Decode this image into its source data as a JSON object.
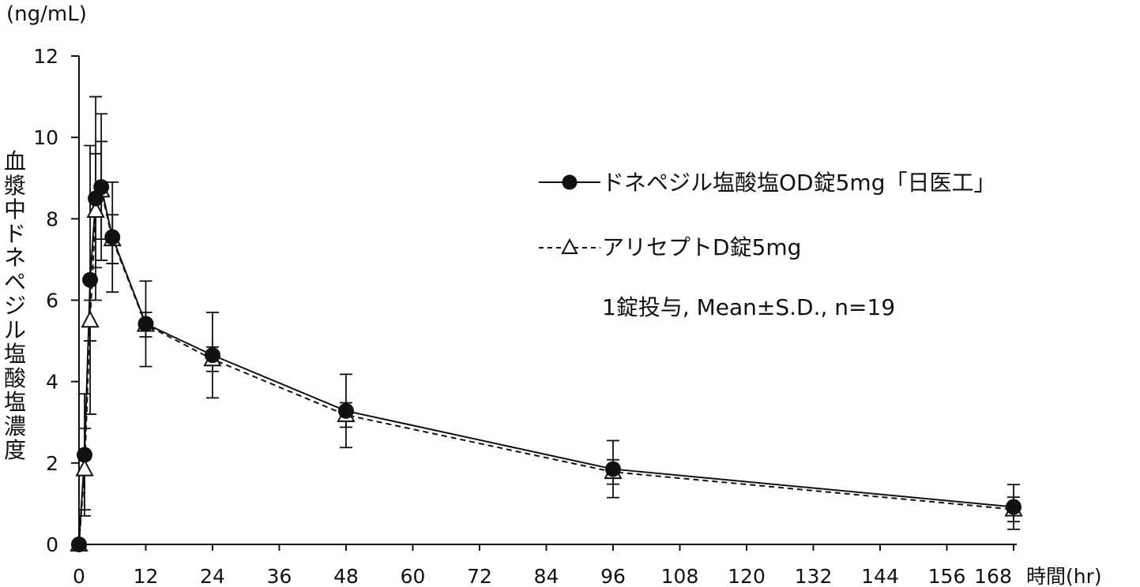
{
  "chart_data": {
    "type": "line",
    "unit_label": "(ng/mL)",
    "ylabel": "血漿中ドネペジル塩酸塩濃度",
    "x_unit_label": "時間(hr)",
    "xlim": [
      0,
      168
    ],
    "ylim": [
      0,
      12
    ],
    "x_ticks": [
      0,
      12,
      24,
      36,
      48,
      60,
      72,
      84,
      96,
      108,
      120,
      132,
      144,
      156,
      168
    ],
    "y_ticks": [
      0,
      2,
      4,
      6,
      8,
      10,
      12
    ],
    "x": [
      0,
      1,
      2,
      3,
      4,
      6,
      12,
      24,
      48,
      96,
      168
    ],
    "series": [
      {
        "name": "ドネペジル塩酸塩OD錠5mg「日医工」",
        "marker": "filled-circle",
        "line": "solid",
        "values": [
          0.0,
          2.2,
          6.5,
          8.5,
          8.78,
          7.55,
          5.42,
          4.65,
          3.28,
          1.85,
          0.92
        ],
        "sd": [
          0,
          1.5,
          3.3,
          2.5,
          1.8,
          1.35,
          1.05,
          1.05,
          0.9,
          0.7,
          0.55
        ]
      },
      {
        "name": "アリセプトD錠5mg",
        "marker": "open-triangle",
        "line": "dashed",
        "values": [
          0.0,
          1.85,
          5.5,
          8.2,
          8.7,
          7.5,
          5.4,
          4.55,
          3.18,
          1.78,
          0.86
        ],
        "sd": [
          0,
          1.0,
          0.5,
          1.4,
          1.2,
          0.6,
          0.3,
          0.3,
          0.3,
          0.3,
          0.3
        ]
      }
    ],
    "annotation": "1錠投与, Mean±S.D., n=19",
    "legend_position": "upper-right",
    "grid": false
  }
}
